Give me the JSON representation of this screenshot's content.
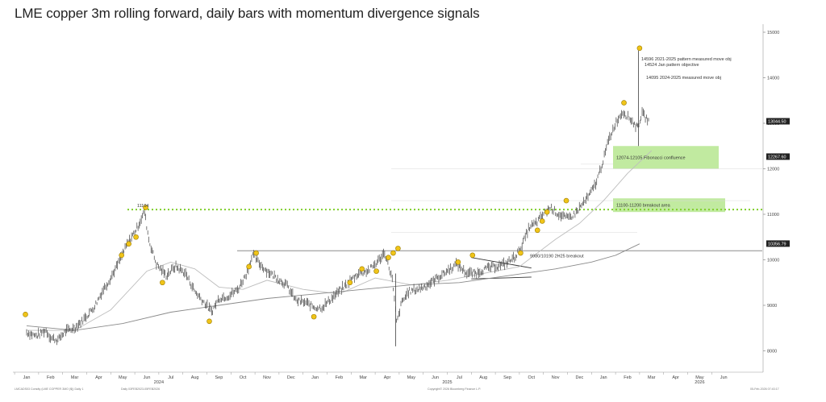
{
  "title": "LME copper 3m rolling forward, daily bars with momentum divergence signals",
  "colors": {
    "bars": "#3f3f3f",
    "ma_short": "#bdbdbd",
    "ma_long": "#8a8a8a",
    "breakout_line": "#7fcf2a",
    "zone_fill": "#b6e68f",
    "signal": "#f0c419",
    "signal_outline": "#9a7b00",
    "price_tag": "#222222"
  },
  "chart_data": {
    "type": "bar",
    "title": "LME copper 3m rolling forward, daily bars with momentum divergence signals",
    "ylim": [
      7800,
      15100
    ],
    "y_ticks": [
      8000,
      9000,
      10000,
      11000,
      12000,
      13000,
      14000,
      15000
    ],
    "x_month_labels": [
      "Jan",
      "Feb",
      "Mar",
      "Apr",
      "May",
      "Jun",
      "Jul",
      "Aug",
      "Sep",
      "Oct",
      "Nov",
      "Dec",
      "Jan",
      "Feb",
      "Mar",
      "Apr",
      "May",
      "Jun",
      "Jul",
      "Aug",
      "Sep",
      "Oct",
      "Nov",
      "Dec",
      "Jan",
      "Feb",
      "Mar",
      "Apr",
      "May",
      "Jun"
    ],
    "x_year_labels": [
      {
        "label": "2024",
        "month_index": 5.5
      },
      {
        "label": "2025",
        "month_index": 17.5
      },
      {
        "label": "2026",
        "month_index": 28
      }
    ],
    "price_series": [
      {
        "m": 0.0,
        "v": 8400
      },
      {
        "m": 0.4,
        "v": 8320
      },
      {
        "m": 0.8,
        "v": 8450
      },
      {
        "m": 1.0,
        "v": 8280
      },
      {
        "m": 1.3,
        "v": 8230
      },
      {
        "m": 1.6,
        "v": 8420
      },
      {
        "m": 2.0,
        "v": 8500
      },
      {
        "m": 2.4,
        "v": 8700
      },
      {
        "m": 2.8,
        "v": 8950
      },
      {
        "m": 3.2,
        "v": 9350
      },
      {
        "m": 3.5,
        "v": 9600
      },
      {
        "m": 3.8,
        "v": 9900
      },
      {
        "m": 4.2,
        "v": 10350
      },
      {
        "m": 4.6,
        "v": 10700
      },
      {
        "m": 4.9,
        "v": 11050
      },
      {
        "m": 5.1,
        "v": 10400
      },
      {
        "m": 5.4,
        "v": 9900
      },
      {
        "m": 5.8,
        "v": 9650
      },
      {
        "m": 6.2,
        "v": 9850
      },
      {
        "m": 6.6,
        "v": 9700
      },
      {
        "m": 7.0,
        "v": 9300
      },
      {
        "m": 7.4,
        "v": 9050
      },
      {
        "m": 7.7,
        "v": 8850
      },
      {
        "m": 8.0,
        "v": 9150
      },
      {
        "m": 8.4,
        "v": 9200
      },
      {
        "m": 8.8,
        "v": 9350
      },
      {
        "m": 9.2,
        "v": 9750
      },
      {
        "m": 9.4,
        "v": 10100
      },
      {
        "m": 9.7,
        "v": 9900
      },
      {
        "m": 10.0,
        "v": 9750
      },
      {
        "m": 10.4,
        "v": 9600
      },
      {
        "m": 10.8,
        "v": 9450
      },
      {
        "m": 11.2,
        "v": 9100
      },
      {
        "m": 11.6,
        "v": 9050
      },
      {
        "m": 12.0,
        "v": 8950
      },
      {
        "m": 12.3,
        "v": 8950
      },
      {
        "m": 12.7,
        "v": 9150
      },
      {
        "m": 13.0,
        "v": 9300
      },
      {
        "m": 13.4,
        "v": 9500
      },
      {
        "m": 13.8,
        "v": 9700
      },
      {
        "m": 14.2,
        "v": 9750
      },
      {
        "m": 14.6,
        "v": 9950
      },
      {
        "m": 14.9,
        "v": 10150
      },
      {
        "m": 15.2,
        "v": 9600
      },
      {
        "m": 15.4,
        "v": 8600
      },
      {
        "m": 15.6,
        "v": 9050
      },
      {
        "m": 15.9,
        "v": 9300
      },
      {
        "m": 16.3,
        "v": 9350
      },
      {
        "m": 16.7,
        "v": 9450
      },
      {
        "m": 17.1,
        "v": 9600
      },
      {
        "m": 17.5,
        "v": 9750
      },
      {
        "m": 17.9,
        "v": 9900
      },
      {
        "m": 18.3,
        "v": 9700
      },
      {
        "m": 18.7,
        "v": 9700
      },
      {
        "m": 19.1,
        "v": 9800
      },
      {
        "m": 19.5,
        "v": 9850
      },
      {
        "m": 19.9,
        "v": 9900
      },
      {
        "m": 20.3,
        "v": 10050
      },
      {
        "m": 20.6,
        "v": 10300
      },
      {
        "m": 20.9,
        "v": 10700
      },
      {
        "m": 21.2,
        "v": 10800
      },
      {
        "m": 21.5,
        "v": 11000
      },
      {
        "m": 21.8,
        "v": 11150
      },
      {
        "m": 22.1,
        "v": 11000
      },
      {
        "m": 22.5,
        "v": 10900
      },
      {
        "m": 22.8,
        "v": 11000
      },
      {
        "m": 23.1,
        "v": 11200
      },
      {
        "m": 23.4,
        "v": 11400
      },
      {
        "m": 23.7,
        "v": 11700
      },
      {
        "m": 24.0,
        "v": 12200
      },
      {
        "m": 24.2,
        "v": 12600
      },
      {
        "m": 24.5,
        "v": 13000
      },
      {
        "m": 24.8,
        "v": 13250
      },
      {
        "m": 25.1,
        "v": 13100
      },
      {
        "m": 25.4,
        "v": 12900
      },
      {
        "m": 25.6,
        "v": 13200
      },
      {
        "m": 25.9,
        "v": 13044
      }
    ],
    "spikes": [
      {
        "m": 15.35,
        "low": 8100,
        "high": 9700
      },
      {
        "m": 25.45,
        "low": 12500,
        "high": 14596
      }
    ],
    "signals": [
      {
        "m": -0.05,
        "v": 8800
      },
      {
        "m": 3.95,
        "v": 10100
      },
      {
        "m": 4.25,
        "v": 10350
      },
      {
        "m": 4.55,
        "v": 10500
      },
      {
        "m": 4.95,
        "v": 11150
      },
      {
        "m": 5.65,
        "v": 9500
      },
      {
        "m": 7.6,
        "v": 8650
      },
      {
        "m": 9.25,
        "v": 9850
      },
      {
        "m": 9.55,
        "v": 10150
      },
      {
        "m": 11.95,
        "v": 8750
      },
      {
        "m": 13.45,
        "v": 9500
      },
      {
        "m": 13.95,
        "v": 9800
      },
      {
        "m": 14.55,
        "v": 9750
      },
      {
        "m": 15.05,
        "v": 10050
      },
      {
        "m": 15.25,
        "v": 10150
      },
      {
        "m": 15.45,
        "v": 10250
      },
      {
        "m": 17.95,
        "v": 9950
      },
      {
        "m": 18.55,
        "v": 10100
      },
      {
        "m": 20.55,
        "v": 10150
      },
      {
        "m": 21.25,
        "v": 10650
      },
      {
        "m": 21.45,
        "v": 10850
      },
      {
        "m": 21.65,
        "v": 11050
      },
      {
        "m": 22.45,
        "v": 11300
      },
      {
        "m": 24.85,
        "v": 13450
      },
      {
        "m": 25.5,
        "v": 14650
      }
    ],
    "ma_short": [
      {
        "m": 0.0,
        "v": 8450
      },
      {
        "m": 2.0,
        "v": 8450
      },
      {
        "m": 3.5,
        "v": 8900
      },
      {
        "m": 5.0,
        "v": 9750
      },
      {
        "m": 6.0,
        "v": 9950
      },
      {
        "m": 7.0,
        "v": 9800
      },
      {
        "m": 8.0,
        "v": 9400
      },
      {
        "m": 9.0,
        "v": 9350
      },
      {
        "m": 10.0,
        "v": 9550
      },
      {
        "m": 11.5,
        "v": 9350
      },
      {
        "m": 13.0,
        "v": 9250
      },
      {
        "m": 14.5,
        "v": 9600
      },
      {
        "m": 16.0,
        "v": 9450
      },
      {
        "m": 17.5,
        "v": 9550
      },
      {
        "m": 19.0,
        "v": 9700
      },
      {
        "m": 20.5,
        "v": 9850
      },
      {
        "m": 22.0,
        "v": 10450
      },
      {
        "m": 23.0,
        "v": 10800
      },
      {
        "m": 24.0,
        "v": 11300
      },
      {
        "m": 25.0,
        "v": 11900
      },
      {
        "m": 26.0,
        "v": 12400
      }
    ],
    "ma_long": [
      {
        "m": 0.0,
        "v": 8550
      },
      {
        "m": 2.0,
        "v": 8450
      },
      {
        "m": 4.0,
        "v": 8600
      },
      {
        "m": 6.0,
        "v": 8850
      },
      {
        "m": 8.0,
        "v": 9000
      },
      {
        "m": 10.0,
        "v": 9150
      },
      {
        "m": 12.0,
        "v": 9250
      },
      {
        "m": 14.0,
        "v": 9350
      },
      {
        "m": 16.0,
        "v": 9450
      },
      {
        "m": 18.0,
        "v": 9500
      },
      {
        "m": 20.0,
        "v": 9650
      },
      {
        "m": 22.0,
        "v": 9800
      },
      {
        "m": 23.5,
        "v": 9950
      },
      {
        "m": 24.5,
        "v": 10100
      },
      {
        "m": 25.5,
        "v": 10350
      }
    ],
    "levels": [
      {
        "name": "breakout_11104",
        "value": 11104,
        "label": "11104",
        "style": "dotted-green"
      },
      {
        "name": "support_10200",
        "value": 10200,
        "label": "9980/10190 2H25 breakout",
        "style": "solid-gray"
      }
    ],
    "triangle": {
      "upper": [
        [
          18.5,
          10050
        ],
        [
          21.0,
          9820
        ]
      ],
      "lower": [
        [
          18.5,
          9580
        ],
        [
          21.0,
          9620
        ]
      ]
    },
    "zones": [
      {
        "label": "12074-12105 Fibonacci confluence",
        "low": 12074,
        "high": 12105,
        "band_low": 12000,
        "band_high": 12500
      },
      {
        "label": "11100-11200 breakout area",
        "low": 11100,
        "high": 11200,
        "band_low": 11050,
        "band_high": 11350
      }
    ],
    "annotations": [
      "14596 2021-2025 pattern measured move obj",
      "14524 Jan pattern objective",
      "14095 2024-2025 measured move obj"
    ],
    "annotation_values": [
      14596,
      14524,
      14095
    ],
    "price_tags": [
      {
        "label": "13044.50",
        "value": 13044
      },
      {
        "label": "12267.60",
        "value": 12267
      },
      {
        "label": "10356.79",
        "value": 10356
      }
    ],
    "footer": {
      "left": "LMCADS03 Comdty (LME COPPER 3MO ($)) Daily 1",
      "left2": "Daily 03FEB2023-05FEB2026",
      "center": "Copyright© 2026 Bloomberg Finance L.P.",
      "right": "05-Feb-2026 07:43:17"
    }
  }
}
